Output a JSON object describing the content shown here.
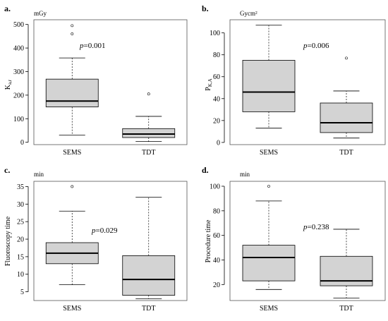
{
  "chart_data": [
    {
      "type": "boxplot",
      "letter": "a.",
      "unit": "mGy",
      "ylabel": "K",
      "ylabel_sub": "a,r",
      "annotation": "=0.001",
      "annotation_p": "p",
      "ylim": [
        -10,
        520
      ],
      "yticks": [
        0,
        100,
        200,
        300,
        400,
        500
      ],
      "categories": [
        "SEMS",
        "TDT"
      ],
      "boxes": [
        {
          "name": "SEMS",
          "whisker_low": 30,
          "q1": 150,
          "median": 175,
          "q3": 268,
          "whisker_high": 358,
          "outliers": [
            460,
            495
          ]
        },
        {
          "name": "TDT",
          "whisker_low": 3,
          "q1": 20,
          "median": 35,
          "q3": 58,
          "whisker_high": 110,
          "outliers": [
            205
          ]
        }
      ]
    },
    {
      "type": "boxplot",
      "letter": "b.",
      "unit": "Gycm²",
      "ylabel": "P",
      "ylabel_sub": "K,A",
      "annotation": "=0.006",
      "annotation_p": "p",
      "ylim": [
        -2,
        112
      ],
      "yticks": [
        0,
        20,
        40,
        60,
        80,
        100
      ],
      "categories": [
        "SEMS",
        "TDT"
      ],
      "boxes": [
        {
          "name": "SEMS",
          "whisker_low": 13,
          "q1": 28,
          "median": 46,
          "q3": 75,
          "whisker_high": 107,
          "outliers": []
        },
        {
          "name": "TDT",
          "whisker_low": 4,
          "q1": 9,
          "median": 18,
          "q3": 36,
          "whisker_high": 47,
          "outliers": [
            77
          ]
        }
      ]
    },
    {
      "type": "boxplot",
      "letter": "c.",
      "unit": "min",
      "ylabel": "Fluoroscopy time",
      "ylabel_sub": "",
      "annotation": "=0.029",
      "annotation_p": "p",
      "ylim": [
        2.5,
        36.5
      ],
      "yticks": [
        5,
        10,
        15,
        20,
        25,
        30,
        35
      ],
      "categories": [
        "SEMS",
        "TDT"
      ],
      "boxes": [
        {
          "name": "SEMS",
          "whisker_low": 7,
          "q1": 13,
          "median": 16,
          "q3": 19,
          "whisker_high": 28,
          "outliers": [
            35
          ]
        },
        {
          "name": "TDT",
          "whisker_low": 3,
          "q1": 4,
          "median": 8.5,
          "q3": 15.3,
          "whisker_high": 32,
          "outliers": []
        }
      ]
    },
    {
      "type": "boxplot",
      "letter": "d.",
      "unit": "min",
      "ylabel": "Procedure time",
      "ylabel_sub": "",
      "annotation": "=0.238",
      "annotation_p": "p",
      "ylim": [
        7,
        104
      ],
      "yticks": [
        20,
        40,
        60,
        80,
        100
      ],
      "categories": [
        "SEMS",
        "TDT"
      ],
      "boxes": [
        {
          "name": "SEMS",
          "whisker_low": 16,
          "q1": 23,
          "median": 42,
          "q3": 52,
          "whisker_high": 88,
          "outliers": [
            100
          ]
        },
        {
          "name": "TDT",
          "whisker_low": 9,
          "q1": 19,
          "median": 23,
          "q3": 43,
          "whisker_high": 65,
          "outliers": []
        }
      ]
    }
  ],
  "colors": {
    "box_fill": "#d3d3d3",
    "stroke": "#000000",
    "frame": "#555555"
  }
}
